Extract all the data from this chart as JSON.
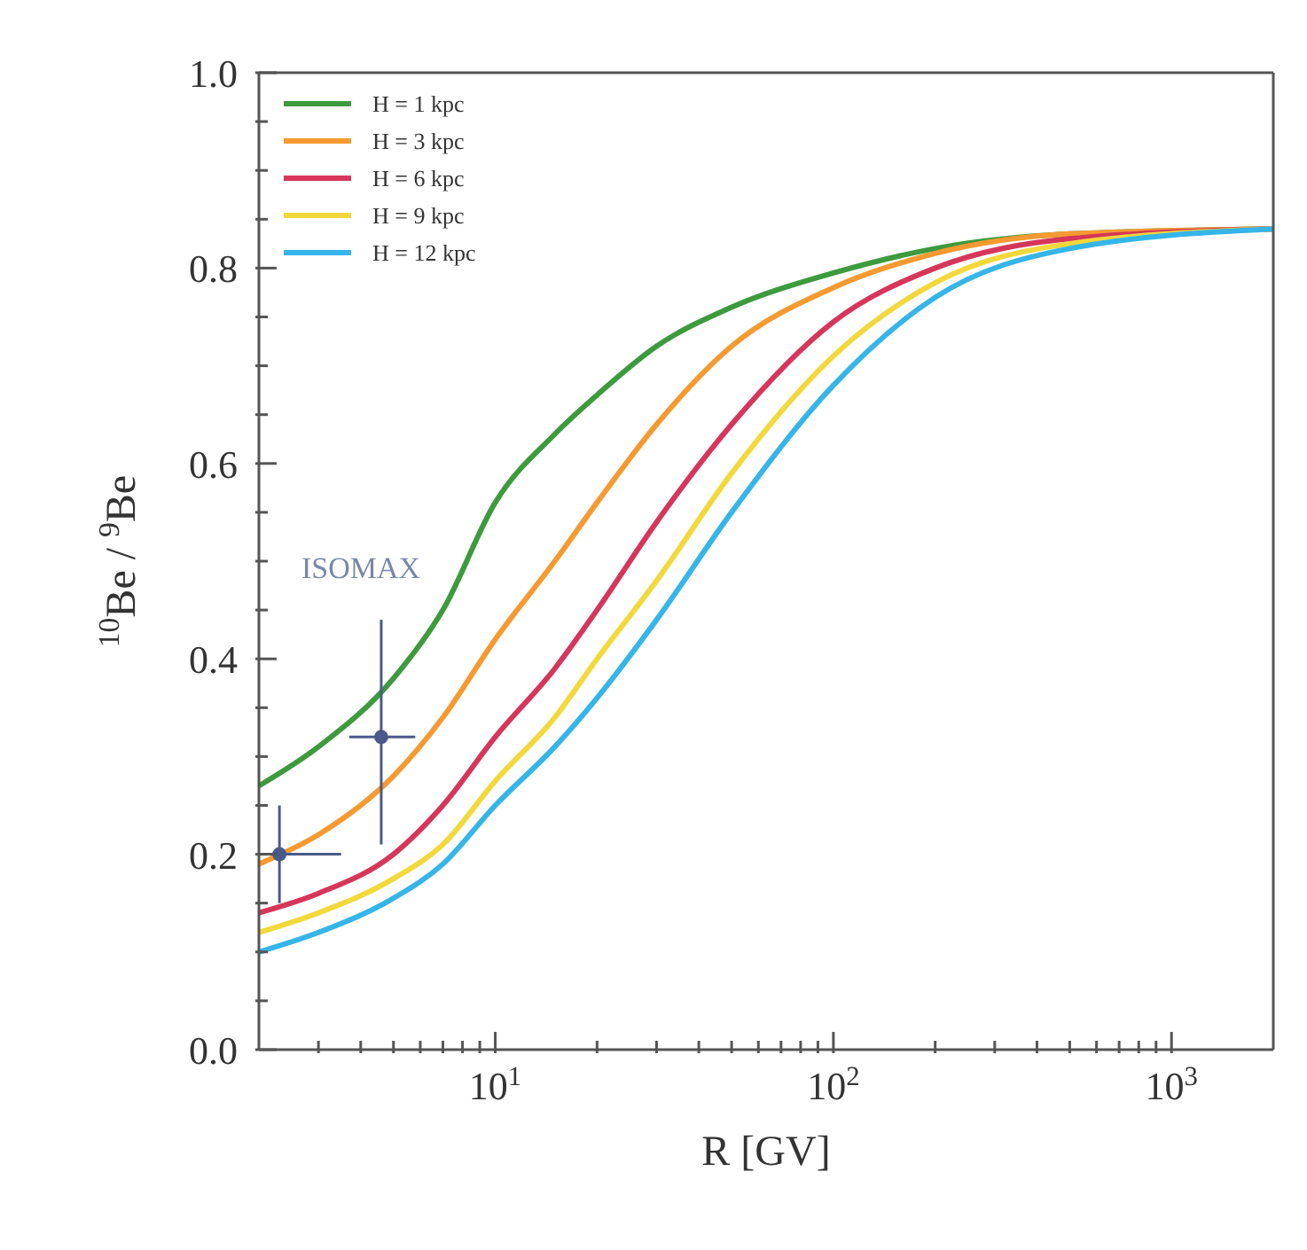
{
  "chart_data": {
    "type": "line",
    "xlabel": "R [GV]",
    "ylabel": "$^{10}$Be / $^{9}$Be",
    "log": "x",
    "xlim": [
      2,
      2000
    ],
    "ylim": [
      0,
      1.0
    ],
    "xticks": [
      {
        "value": 3,
        "label": null
      },
      {
        "value": 4,
        "label": null
      },
      {
        "value": 5,
        "label": null
      },
      {
        "value": 6,
        "label": null
      },
      {
        "value": 7,
        "label": null
      },
      {
        "value": 8,
        "label": null
      },
      {
        "value": 9,
        "label": null
      },
      {
        "value": 10,
        "label": "10$^{1}$"
      },
      {
        "value": 20,
        "label": null
      },
      {
        "value": 30,
        "label": null
      },
      {
        "value": 40,
        "label": null
      },
      {
        "value": 50,
        "label": null
      },
      {
        "value": 60,
        "label": null
      },
      {
        "value": 70,
        "label": null
      },
      {
        "value": 80,
        "label": null
      },
      {
        "value": 90,
        "label": null
      },
      {
        "value": 100,
        "label": "10$^{2}$"
      },
      {
        "value": 200,
        "label": null
      },
      {
        "value": 300,
        "label": null
      },
      {
        "value": 400,
        "label": null
      },
      {
        "value": 500,
        "label": null
      },
      {
        "value": 600,
        "label": null
      },
      {
        "value": 700,
        "label": null
      },
      {
        "value": 800,
        "label": null
      },
      {
        "value": 900,
        "label": null
      },
      {
        "value": 1000,
        "label": "10$^{3}$"
      }
    ],
    "yticks": [
      {
        "value": 0,
        "label": "0.0"
      },
      {
        "value": 0.05,
        "label": null
      },
      {
        "value": 0.1,
        "label": null
      },
      {
        "value": 0.15,
        "label": null
      },
      0.2,
      {
        "value": 0.25,
        "label": null
      },
      {
        "value": 0.3,
        "label": null
      },
      {
        "value": 0.35,
        "label": null
      },
      0.4,
      {
        "value": 0.45,
        "label": null
      },
      {
        "value": 0.5,
        "label": null
      },
      {
        "value": 0.55,
        "label": null
      },
      0.6,
      {
        "value": 0.65,
        "label": null
      },
      {
        "value": 0.7,
        "label": null
      },
      {
        "value": 0.75,
        "label": null
      },
      0.8,
      {
        "value": 0.85,
        "label": null
      },
      {
        "value": 0.9,
        "label": null
      },
      {
        "value": 0.95,
        "label": null
      },
      {
        "value": 1.0,
        "label": "1.0"
      }
    ],
    "grid": false,
    "legend": "top left",
    "marker": "none",
    "line_style": "solid",
    "x": [
      2,
      3,
      5,
      7,
      10,
      15,
      20,
      30,
      50,
      100,
      200,
      500,
      2000
    ],
    "series": [
      {
        "name": "H = 1 kpc",
        "color": "#3d9a3d",
        "values": [
          0.27,
          0.31,
          0.38,
          0.45,
          0.56,
          0.63,
          0.67,
          0.72,
          0.76,
          0.795,
          0.82,
          0.835,
          0.84
        ]
      },
      {
        "name": "H = 3 kpc",
        "color": "#f59a30",
        "values": [
          0.19,
          0.22,
          0.28,
          0.34,
          0.42,
          0.5,
          0.56,
          0.64,
          0.72,
          0.78,
          0.815,
          0.835,
          0.84
        ]
      },
      {
        "name": "H = 6 kpc",
        "color": "#d6365a",
        "values": [
          0.14,
          0.16,
          0.2,
          0.25,
          0.32,
          0.39,
          0.45,
          0.54,
          0.64,
          0.745,
          0.8,
          0.83,
          0.84
        ]
      },
      {
        "name": "H = 9 kpc",
        "color": "#f2d83a",
        "values": [
          0.12,
          0.14,
          0.175,
          0.21,
          0.275,
          0.34,
          0.4,
          0.48,
          0.59,
          0.71,
          0.785,
          0.825,
          0.84
        ]
      },
      {
        "name": "H = 12 kpc",
        "color": "#35b5e8",
        "values": [
          0.1,
          0.12,
          0.155,
          0.19,
          0.25,
          0.31,
          0.36,
          0.44,
          0.55,
          0.68,
          0.77,
          0.82,
          0.84
        ]
      },
      {
        "type": "scatter",
        "color": "#4a5a8a",
        "marker": "circle",
        "x": [
          2.3,
          4.6
        ],
        "values": [
          0.2,
          0.32
        ],
        "errors": [
          0.05,
          [
            0.21,
            0.44
          ]
        ],
        "xerrors": [
          [
            2.0,
            3.5
          ],
          [
            3.7,
            5.8
          ]
        ]
      }
    ],
    "annotations": [
      "ISOMAX"
    ]
  }
}
